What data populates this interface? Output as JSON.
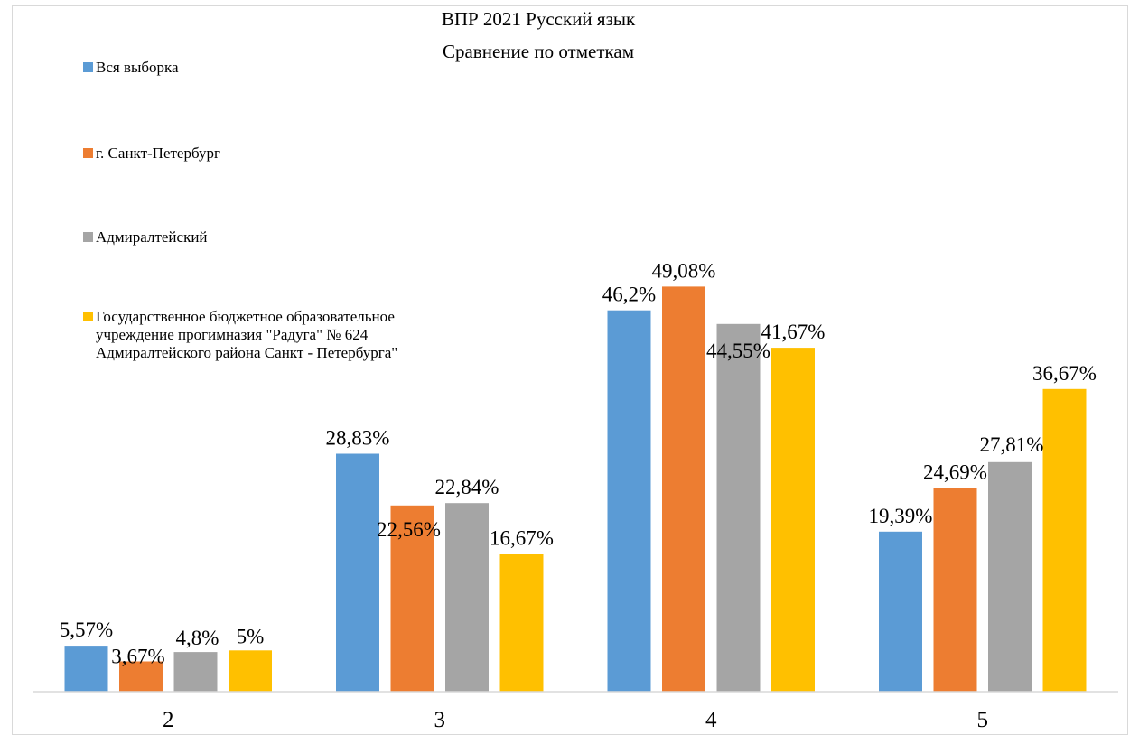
{
  "chart_data": {
    "type": "bar",
    "title": "ВПР 2021 Русский язык",
    "subtitle": "Сравнение по отметкам",
    "xlabel": "",
    "ylabel": "",
    "categories": [
      "2",
      "3",
      "4",
      "5"
    ],
    "ylim": [
      0,
      55
    ],
    "grid": false,
    "legend_position": "left",
    "series": [
      {
        "name": "Вся выборка",
        "color": "#5B9BD5",
        "values": [
          5.57,
          28.83,
          46.2,
          19.39
        ],
        "labels": [
          "5,57%",
          "28,83%",
          "46,2%",
          "19,39%"
        ]
      },
      {
        "name": "г. Санкт-Петербург",
        "color": "#ED7D31",
        "values": [
          3.67,
          22.56,
          49.08,
          24.69
        ],
        "labels": [
          "3,67%",
          "22,56%",
          "49,08%",
          "24,69%"
        ]
      },
      {
        "name": "Адмиралтейский",
        "color": "#A5A5A5",
        "values": [
          4.8,
          22.84,
          44.55,
          27.81
        ],
        "labels": [
          "4,8%",
          "22,84%",
          "44,55%",
          "27,81%"
        ]
      },
      {
        "name": "Государственное бюджетное образовательное учреждение прогимназия \"Радуга\" № 624 Адмиралтейского района Санкт - Петербурга\"",
        "name_lines": [
          "Государственное бюджетное образовательное",
          "учреждение прогимназия \"Радуга\" № 624",
          "Адмиралтейского района Санкт - Петербурга\""
        ],
        "color": "#FFC000",
        "values": [
          5,
          16.67,
          41.67,
          36.67
        ],
        "labels": [
          "5%",
          "16,67%",
          "41,67%",
          "36,67%"
        ]
      }
    ]
  }
}
